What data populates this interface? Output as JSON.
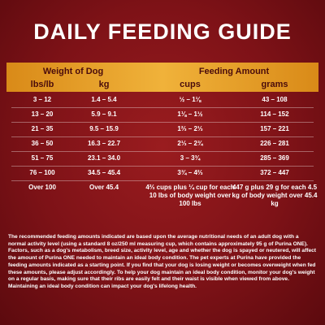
{
  "header": {
    "title": "DAILY FEEDING GUIDE"
  },
  "table": {
    "group_headers": [
      "Weight of Dog",
      "Feeding Amount"
    ],
    "columns": [
      "lbs/lb",
      "kg",
      "cups",
      "grams"
    ],
    "rows": [
      [
        "3 – 12",
        "1.4 – 5.4",
        "½ – 1⅛",
        "43 – 108"
      ],
      [
        "13 – 20",
        "5.9 – 9.1",
        "1⅛ – 1½",
        "114 – 152"
      ],
      [
        "21 – 35",
        "9.5 – 15.9",
        "1⅔ – 2⅓",
        "157 – 221"
      ],
      [
        "36 – 50",
        "16.3 – 22.7",
        "2⅓ – 2¾",
        "226 – 281"
      ],
      [
        "51 – 75",
        "23.1 – 34.0",
        "3 – 3¾",
        "285 – 369"
      ],
      [
        "76 – 100",
        "34.5 – 45.4",
        "3¾ – 4⅔",
        "372 – 447"
      ],
      [
        "Over 100",
        "Over 45.4",
        "4⅔ cups plus ¼ cup for each 10 lbs of body weight over 100 lbs",
        "447 g plus 29 g for each 4.5 kg of body weight over 45.4 kg"
      ]
    ]
  },
  "note": "The recommended feeding amounts indicated are based upon the average nutritional needs of an adult dog with a normal activity level (using a standard 8 oz/250 ml measuring cup, which contains approximately 95 g of Purina ONE). Factors, such as a dog's metabolism, breed size, activity level, age and whether the dog is spayed or neutered, will affect the amount of Purina ONE needed to maintain an ideal body condition. The pet experts at Purina have provided the feeding amounts indicated as a starting point. If you find that your dog is losing weight or becomes overweight when fed these amounts, please adjust accordingly. To help your dog maintain an ideal body condition, monitor your dog's weight on a regular basis, making sure that their ribs are easily felt and their waist is visible when viewed from above. Maintaining an ideal body condition can impact your dog's lifelong health."
}
